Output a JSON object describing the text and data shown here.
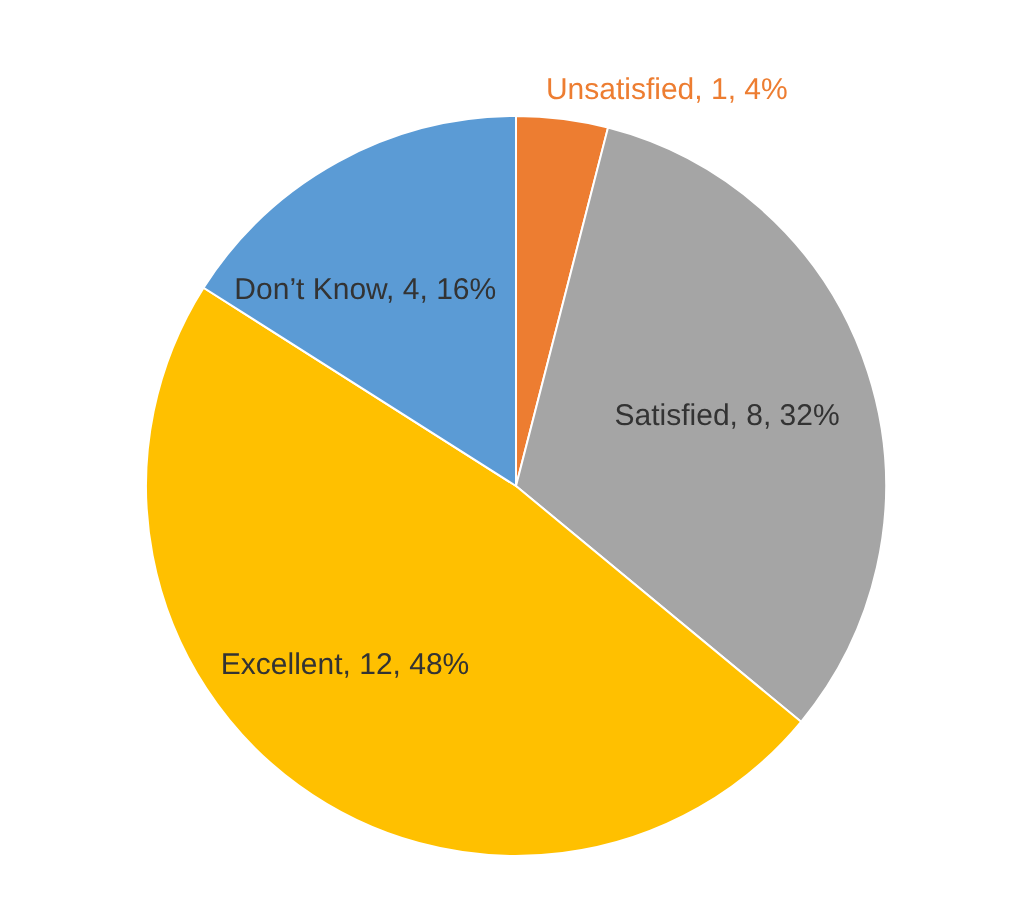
{
  "chart_data": {
    "type": "pie",
    "categories": [
      "Unsatisfied",
      "Satisfied",
      "Excellent",
      "Don’t Know"
    ],
    "values": [
      1,
      8,
      12,
      4
    ],
    "colors": [
      "#ed7d31",
      "#a5a5a5",
      "#ffc000",
      "#5b9bd5"
    ],
    "value_labels": [
      "1, 4%",
      "8, 32%",
      "12, 48%",
      "4, 16%"
    ]
  }
}
